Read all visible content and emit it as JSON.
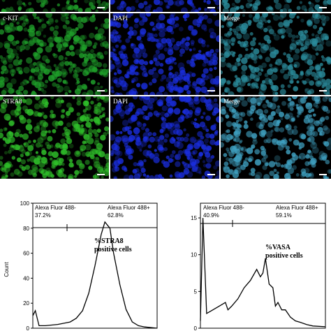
{
  "micrograph_rows": [
    {
      "panels": [
        {
          "label": "",
          "color": "#1fa02a"
        },
        {
          "label": "",
          "color": "#1a2ee0"
        },
        {
          "label": "",
          "color": "#2a8a9a"
        }
      ]
    },
    {
      "panels": [
        {
          "label": "c-KIT",
          "color": "#1fa02a"
        },
        {
          "label": "DAPI",
          "color": "#1a2ee0"
        },
        {
          "label": "Merge",
          "color": "#2a8a9a"
        }
      ]
    },
    {
      "panels": [
        {
          "label": "STRA8",
          "color": "#2fc02a"
        },
        {
          "label": "DAPI",
          "color": "#1a2ee0"
        },
        {
          "label": "Merge",
          "color": "#3fa0c0"
        }
      ]
    }
  ],
  "chart_data": [
    {
      "type": "line",
      "ylabel": "Count",
      "ylim": [
        0,
        100
      ],
      "yticks": [
        0,
        20,
        40,
        60,
        80,
        100
      ],
      "gates": [
        {
          "name": "Alexa Fluor 488-",
          "percent": "37.2%"
        },
        {
          "name": "Alexa Fluor 488+",
          "percent": "62.8%"
        }
      ],
      "annotation": [
        "%STRA8",
        "positive cells"
      ],
      "x": [
        0,
        0.02,
        0.05,
        0.1,
        0.2,
        0.3,
        0.35,
        0.4,
        0.45,
        0.5,
        0.52,
        0.55,
        0.58,
        0.62,
        0.65,
        0.7,
        0.75,
        0.8,
        0.85,
        0.9,
        1.0
      ],
      "values": [
        10,
        14,
        2,
        2,
        3,
        5,
        8,
        14,
        28,
        50,
        60,
        75,
        85,
        80,
        60,
        35,
        15,
        5,
        2,
        1,
        0
      ]
    },
    {
      "type": "line",
      "ylabel": "",
      "ylim": [
        0,
        17
      ],
      "yticks": [
        0,
        5,
        10,
        15
      ],
      "gates": [
        {
          "name": "Alexa Fluor 488-",
          "percent": "40.9%"
        },
        {
          "name": "Alexa Fluor 488+",
          "percent": "59.1%"
        }
      ],
      "annotation": [
        "%VASA",
        "positive cells"
      ],
      "x": [
        0,
        0.02,
        0.05,
        0.1,
        0.15,
        0.2,
        0.22,
        0.25,
        0.3,
        0.35,
        0.4,
        0.45,
        0.48,
        0.5,
        0.52,
        0.55,
        0.58,
        0.6,
        0.62,
        0.65,
        0.68,
        0.72,
        0.76,
        0.8,
        0.85,
        0.9,
        1.0
      ],
      "values": [
        1,
        15,
        2,
        2.5,
        3,
        3.5,
        2.5,
        3,
        4,
        5.5,
        6.5,
        8,
        7,
        7.5,
        9.5,
        6,
        5.5,
        3,
        3.5,
        2.5,
        2.5,
        1.5,
        1,
        0.8,
        0.5,
        0.3,
        0.2
      ]
    }
  ]
}
